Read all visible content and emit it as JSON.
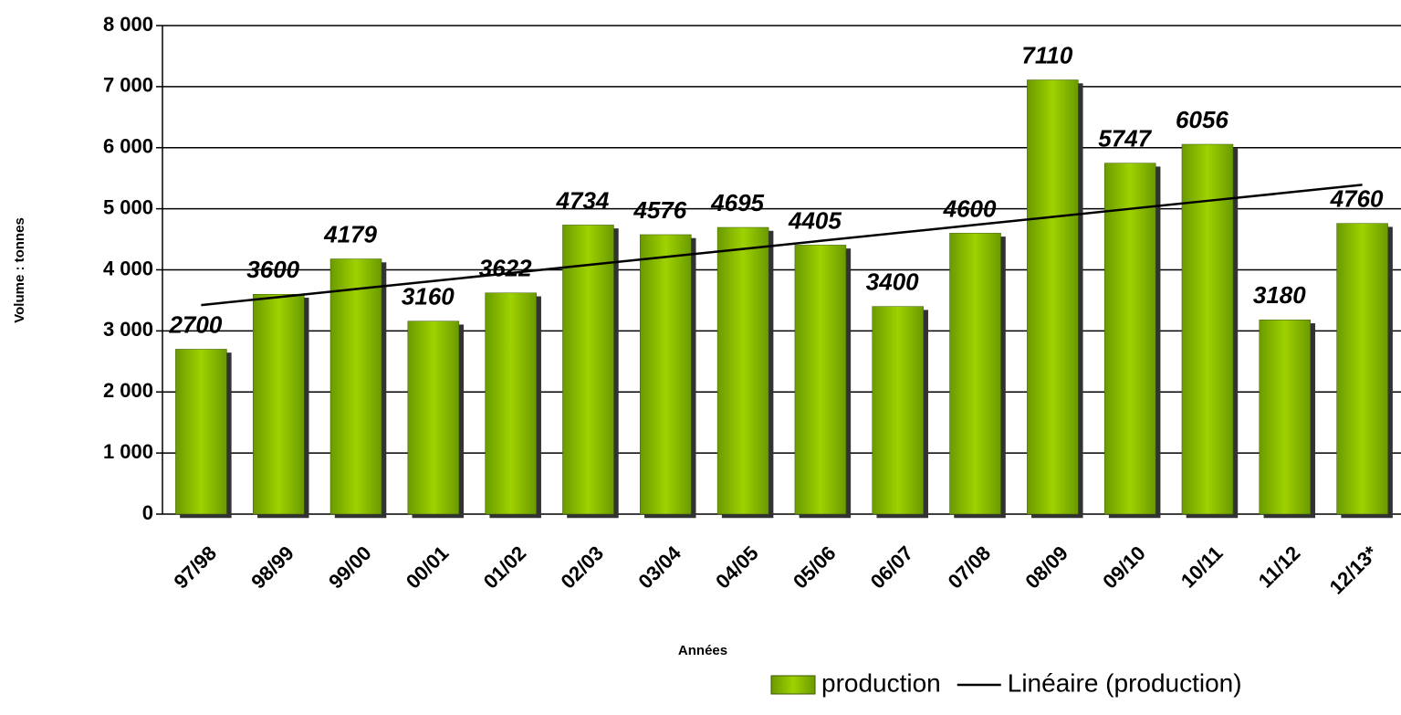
{
  "chart_data": {
    "type": "bar",
    "x_label": "Années",
    "y_label": "Volume : tonnes",
    "categories": [
      "97/98",
      "98/99",
      "99/00",
      "00/01",
      "01/02",
      "02/03",
      "03/04",
      "04/05",
      "05/06",
      "06/07",
      "07/08",
      "08/09",
      "09/10",
      "10/11",
      "11/12",
      "12/13*"
    ],
    "series": [
      {
        "name": "production",
        "type": "bar",
        "color": "#8fc000",
        "values": [
          2700,
          3600,
          4179,
          3160,
          3622,
          4734,
          4576,
          4695,
          4405,
          3400,
          4600,
          7110,
          5747,
          6056,
          3180,
          4760
        ]
      },
      {
        "name": "Linéaire (production)",
        "type": "line",
        "color": "#000000",
        "values": [
          3423,
          3554,
          3686,
          3817,
          3948,
          4080,
          4211,
          4342,
          4474,
          4605,
          4736,
          4867,
          4999,
          5130,
          5261,
          5393
        ]
      }
    ],
    "ylim": [
      0,
      8000
    ],
    "yticks": [
      0,
      {
        "value": 1000,
        "label": "1 000"
      },
      {
        "value": 2000,
        "label": "2 000"
      },
      {
        "value": 3000,
        "label": "3 000"
      },
      {
        "value": 4000,
        "label": "4 000"
      },
      {
        "value": 5000,
        "label": "5 000"
      },
      {
        "value": 6000,
        "label": "6 000"
      },
      {
        "value": 7000,
        "label": "7 000"
      },
      {
        "value": 8000,
        "label": "8 000"
      }
    ],
    "grid": true,
    "legend": "bottom-right"
  }
}
